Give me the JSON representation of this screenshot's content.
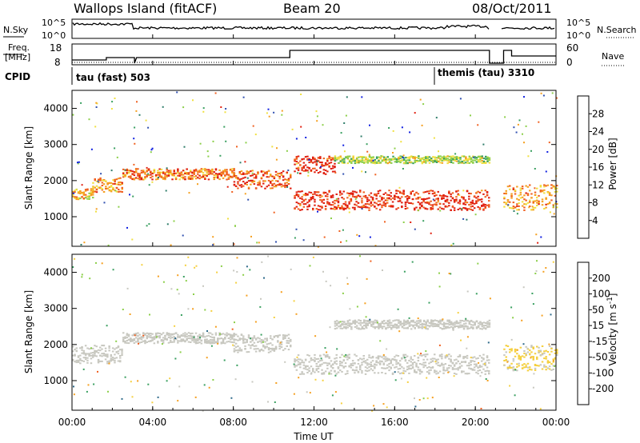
{
  "header": {
    "station": "Wallops Island (fitACF)",
    "beam": "Beam 20",
    "date": "08/Oct/2011"
  },
  "top_panels": {
    "nsky_label": "N.Sky",
    "nsky_ticks": [
      "10^5",
      "10^0"
    ],
    "nsearch_label": "N.Search",
    "nsearch_ticks": [
      "10^5",
      "10^0"
    ],
    "freq_label_1": "Freq.",
    "freq_label_2": "[MHz]",
    "freq_ticks": [
      "18",
      "8"
    ],
    "nave_label": "Nave",
    "nave_ticks": [
      "60",
      "0"
    ],
    "cpid_label": "CPID",
    "cpid_segments": [
      "tau (fast) 503",
      "themis (tau) 3310"
    ]
  },
  "x_axis": {
    "label": "Time UT",
    "ticks": [
      "00:00",
      "04:00",
      "08:00",
      "12:00",
      "16:00",
      "20:00",
      "00:00"
    ],
    "range_hours": [
      0,
      24
    ]
  },
  "chart_data": [
    {
      "type": "heatmap",
      "title": "",
      "xlabel": "",
      "ylabel": "Slant Range [km]",
      "yticks": [
        "4000",
        "3000",
        "2000",
        "1000"
      ],
      "ylim": [
        180,
        4500
      ],
      "colorbar": {
        "label": "Power [dB]",
        "ticks": [
          "28",
          "24",
          "20",
          "16",
          "12",
          "8",
          "4"
        ],
        "range": [
          0,
          30
        ],
        "colors": [
          "#1020e0",
          "#3050b0",
          "#2f7d6a",
          "#3aa060",
          "#8ccf4a",
          "#f0e040",
          "#f5a020",
          "#f06020",
          "#e02010"
        ]
      },
      "data_gap_hours": [
        [
          20.75,
          21.3
        ]
      ],
      "bands": [
        {
          "t": [
            0.0,
            1.0
          ],
          "range_km": [
            1500,
            1800
          ],
          "power_db": 20
        },
        {
          "t": [
            1.0,
            2.5
          ],
          "range_km": [
            1700,
            2100
          ],
          "power_db": 22
        },
        {
          "t": [
            2.5,
            8.0
          ],
          "range_km": [
            2050,
            2350
          ],
          "power_db": 24
        },
        {
          "t": [
            8.0,
            10.8
          ],
          "range_km": [
            1800,
            2300
          ],
          "power_db": 26
        },
        {
          "t": [
            11.0,
            13.0
          ],
          "range_km": [
            2200,
            2700
          ],
          "power_db": 28
        },
        {
          "t": [
            11.0,
            20.7
          ],
          "range_km": [
            1200,
            1750
          ],
          "power_db": 28
        },
        {
          "t": [
            13.0,
            20.7
          ],
          "range_km": [
            2500,
            2700
          ],
          "power_db": 16
        },
        {
          "t": [
            21.3,
            24.0
          ],
          "range_km": [
            1200,
            1900
          ],
          "power_db": 22
        }
      ]
    },
    {
      "type": "heatmap",
      "title": "",
      "xlabel": "Time UT",
      "ylabel": "Slant Range [km]",
      "yticks": [
        "4000",
        "3000",
        "2000",
        "1000"
      ],
      "ylim": [
        180,
        4500
      ],
      "colorbar": {
        "label": "Velocity [m s^-1]",
        "ticks": [
          "200",
          "100",
          "50",
          "15",
          "-15",
          "-50",
          "-100",
          "-200"
        ],
        "range": [
          -250,
          250
        ],
        "colors": [
          "#1a2fb0",
          "#2e6a8a",
          "#3aa060",
          "#8ccf4a",
          "#c8c8c0",
          "#f5d040",
          "#f5a020",
          "#f06020",
          "#e02010"
        ]
      },
      "data_gap_hours": [
        [
          20.75,
          21.3
        ]
      ],
      "bands": [
        {
          "t": [
            0.0,
            2.5
          ],
          "range_km": [
            1500,
            2000
          ],
          "velocity": 0
        },
        {
          "t": [
            2.5,
            8.0
          ],
          "range_km": [
            2050,
            2350
          ],
          "velocity": 0
        },
        {
          "t": [
            8.0,
            10.8
          ],
          "range_km": [
            1800,
            2300
          ],
          "velocity": 0
        },
        {
          "t": [
            11.0,
            20.7
          ],
          "range_km": [
            1200,
            1750
          ],
          "velocity": 0
        },
        {
          "t": [
            13.0,
            20.7
          ],
          "range_km": [
            2450,
            2700
          ],
          "velocity": 0
        },
        {
          "t": [
            21.3,
            24.0
          ],
          "range_km": [
            1300,
            2000
          ],
          "velocity": -30
        }
      ]
    }
  ]
}
